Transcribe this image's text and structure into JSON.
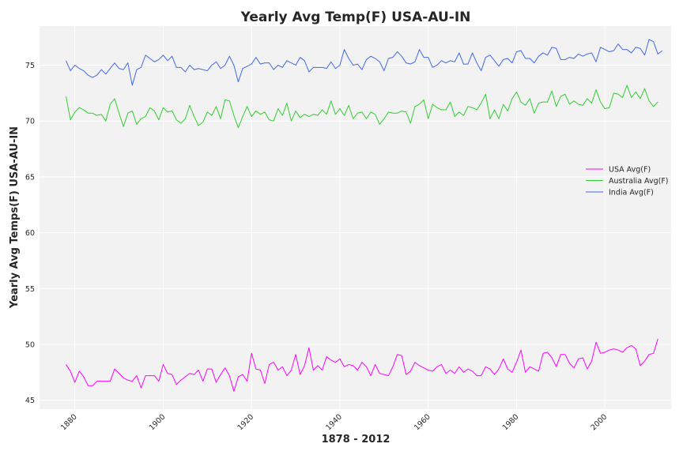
{
  "chart_data": {
    "type": "line",
    "title": "Yearly Avg Temp(F) USA-AU-IN",
    "xlabel": "1878 - 2012",
    "ylabel": "Yearly Avg Temps(F) USA-AU-IN",
    "xlim": [
      1872,
      2015
    ],
    "ylim": [
      44.2,
      78.5
    ],
    "x_ticks": [
      1880,
      1900,
      1920,
      1940,
      1960,
      1980,
      2000
    ],
    "y_ticks": [
      45,
      50,
      55,
      60,
      65,
      70,
      75
    ],
    "grid": true,
    "legend_position": "center-right",
    "x_start": 1878,
    "series": [
      {
        "name": "USA Avg(F)",
        "color": "#ff00ff",
        "values": [
          48.2,
          47.6,
          46.6,
          47.6,
          47.1,
          46.3,
          46.3,
          46.7,
          46.7,
          46.7,
          46.7,
          47.8,
          47.4,
          47.0,
          46.8,
          46.7,
          47.2,
          46.1,
          47.2,
          47.2,
          47.2,
          46.7,
          48.2,
          47.4,
          47.3,
          46.4,
          46.8,
          47.1,
          47.4,
          47.3,
          47.7,
          46.7,
          47.8,
          47.8,
          46.6,
          47.3,
          47.9,
          47.2,
          45.8,
          47.1,
          47.3,
          46.7,
          49.2,
          47.8,
          47.7,
          46.5,
          48.2,
          48.4,
          47.7,
          48.0,
          47.2,
          47.7,
          49.1,
          47.3,
          48.1,
          49.7,
          47.7,
          48.1,
          47.7,
          48.9,
          48.6,
          48.4,
          48.7,
          48.0,
          48.2,
          48.1,
          47.7,
          48.4,
          48.0,
          47.2,
          48.2,
          47.4,
          47.3,
          47.2,
          48.0,
          49.1,
          49.0,
          47.3,
          47.6,
          48.4,
          48.1,
          47.9,
          47.7,
          47.6,
          48.0,
          48.2,
          47.4,
          47.7,
          47.4,
          48.0,
          47.5,
          47.8,
          47.6,
          47.2,
          47.2,
          48.0,
          47.8,
          47.3,
          47.8,
          48.7,
          47.8,
          47.5,
          48.4,
          49.5,
          47.5,
          48.0,
          47.8,
          47.6,
          49.2,
          49.3,
          48.8,
          48.0,
          49.1,
          49.1,
          48.3,
          47.9,
          48.7,
          48.8,
          47.8,
          48.5,
          50.2,
          49.2,
          49.3,
          49.5,
          49.6,
          49.5,
          49.3,
          49.7,
          49.9,
          49.6,
          48.1,
          48.5,
          49.1,
          49.2,
          50.5
        ]
      },
      {
        "name": "Australia Avg(F)",
        "color": "#33cc33",
        "values": [
          72.2,
          70.1,
          70.8,
          71.2,
          71.0,
          70.7,
          70.7,
          70.5,
          70.6,
          70.0,
          71.5,
          72.0,
          70.7,
          69.5,
          70.7,
          70.9,
          69.7,
          70.2,
          70.4,
          71.2,
          70.9,
          70.1,
          71.2,
          70.8,
          70.9,
          70.1,
          69.8,
          70.2,
          71.4,
          70.4,
          69.6,
          69.9,
          70.8,
          70.5,
          71.3,
          70.2,
          71.9,
          71.8,
          70.5,
          69.4,
          70.4,
          71.3,
          70.4,
          70.9,
          70.6,
          70.8,
          70.1,
          70.0,
          71.1,
          70.5,
          71.6,
          70.0,
          70.9,
          70.3,
          70.6,
          70.4,
          70.6,
          70.5,
          71.0,
          70.6,
          71.8,
          70.6,
          71.1,
          70.5,
          71.4,
          70.2,
          70.7,
          70.8,
          70.2,
          70.8,
          70.6,
          69.7,
          70.2,
          70.8,
          70.7,
          70.7,
          70.9,
          70.8,
          69.8,
          71.3,
          71.5,
          71.9,
          70.2,
          71.5,
          71.2,
          71.0,
          71.0,
          71.7,
          70.4,
          70.8,
          70.5,
          71.3,
          71.2,
          71.0,
          71.6,
          72.4,
          70.2,
          71.0,
          70.2,
          71.5,
          70.9,
          72.0,
          72.6,
          71.7,
          71.4,
          72.0,
          70.7,
          71.6,
          71.7,
          71.7,
          72.7,
          71.3,
          72.2,
          72.4,
          71.5,
          71.8,
          71.5,
          71.4,
          72.0,
          71.6,
          72.8,
          71.7,
          71.1,
          71.2,
          72.5,
          72.4,
          72.1,
          73.2,
          72.1,
          72.6,
          72.0,
          72.9,
          71.8,
          71.3,
          71.7
        ]
      },
      {
        "name": "India Avg(F)",
        "color": "#4169e1",
        "values": [
          75.4,
          74.5,
          75.0,
          74.7,
          74.5,
          74.1,
          73.9,
          74.1,
          74.6,
          74.2,
          74.7,
          75.2,
          74.7,
          74.6,
          75.2,
          73.2,
          74.6,
          74.8,
          75.9,
          75.6,
          75.3,
          75.5,
          75.9,
          75.4,
          75.8,
          74.8,
          74.8,
          74.4,
          75.0,
          74.6,
          74.7,
          74.6,
          74.5,
          75.0,
          75.3,
          74.7,
          75.0,
          75.8,
          75.0,
          73.5,
          74.7,
          74.9,
          75.1,
          75.7,
          75.1,
          75.2,
          75.2,
          74.6,
          75.0,
          74.8,
          75.4,
          75.2,
          75.0,
          75.7,
          75.4,
          74.4,
          74.8,
          74.8,
          74.8,
          74.7,
          75.3,
          74.7,
          75.0,
          76.4,
          75.6,
          75.0,
          75.1,
          74.6,
          75.5,
          75.8,
          75.6,
          75.3,
          74.5,
          75.6,
          75.7,
          76.2,
          75.8,
          75.2,
          75.1,
          75.3,
          76.4,
          75.7,
          75.7,
          74.8,
          75.0,
          75.4,
          75.2,
          75.4,
          75.3,
          76.1,
          75.1,
          75.1,
          76.1,
          75.2,
          74.5,
          75.7,
          75.9,
          75.4,
          74.9,
          75.5,
          75.6,
          75.2,
          76.2,
          76.3,
          75.6,
          75.6,
          75.2,
          75.8,
          76.1,
          75.9,
          76.6,
          76.5,
          75.5,
          75.5,
          75.7,
          75.6,
          76.0,
          75.8,
          76.0,
          76.1,
          75.3,
          76.6,
          76.4,
          76.2,
          76.3,
          76.9,
          76.4,
          76.4,
          76.1,
          76.6,
          76.5,
          75.9,
          77.3,
          77.1,
          76.0,
          76.3
        ]
      }
    ]
  }
}
